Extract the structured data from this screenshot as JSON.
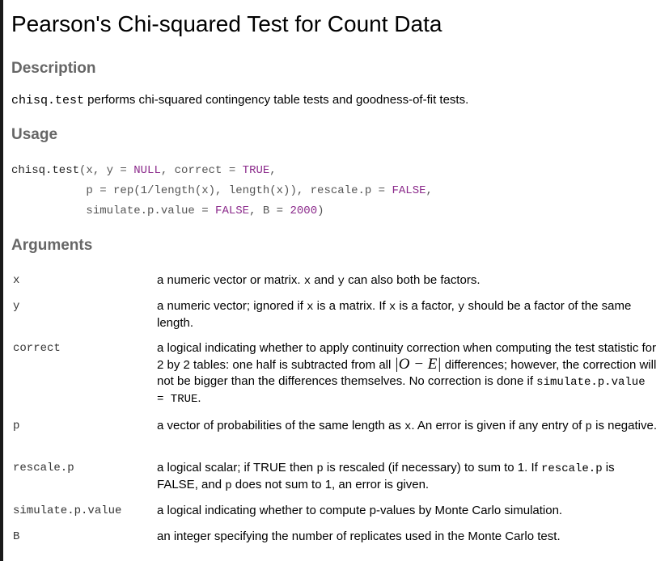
{
  "page": {
    "title": "Pearson's Chi-squared Test for Count Data"
  },
  "description": {
    "heading": "Description",
    "code": "chisq.test",
    "text": " performs chi-squared contingency table tests and goodness-of-fit tests."
  },
  "usage": {
    "heading": "Usage",
    "lines": [
      "chisq.test(x, y = NULL, correct = TRUE,",
      "           p = rep(1/length(x), length(x)), rescale.p = FALSE,",
      "           simulate.p.value = FALSE, B = 2000)"
    ]
  },
  "arguments": {
    "heading": "Arguments",
    "items": [
      {
        "name": "x",
        "parts": [
          "a numeric vector or matrix. ",
          "x",
          " and ",
          "y",
          " can also both be factors."
        ]
      },
      {
        "name": "y",
        "parts": [
          "a numeric vector; ignored if ",
          "x",
          " is a matrix. If ",
          "x",
          " is a factor, ",
          "y",
          " should be a factor of the same length."
        ]
      },
      {
        "name": "correct",
        "parts": [
          "a logical indicating whether to apply continuity correction when computing the test statistic for 2 by 2 tables: one half is subtracted from all ",
          "|O − E|",
          " differences; however, the correction will not be bigger than the differences themselves. No correction is done if ",
          "simulate.p.value = TRUE",
          "."
        ]
      },
      {
        "name": "p",
        "parts": [
          "a vector of probabilities of the same length as ",
          "x",
          ". An error is given if any entry of ",
          "p",
          " is negative."
        ]
      },
      {
        "name": "rescale.p",
        "parts": [
          "a logical scalar; if TRUE then ",
          "p",
          " is rescaled (if necessary) to sum to 1. If ",
          "rescale.p",
          " is FALSE, and ",
          "p",
          " does not sum to 1, an error is given."
        ]
      },
      {
        "name": "simulate.p.value",
        "parts": [
          "a logical indicating whether to compute p-values by Monte Carlo simulation."
        ]
      },
      {
        "name": "B",
        "parts": [
          "an integer specifying the number of replicates used in the Monte Carlo test."
        ]
      }
    ]
  }
}
